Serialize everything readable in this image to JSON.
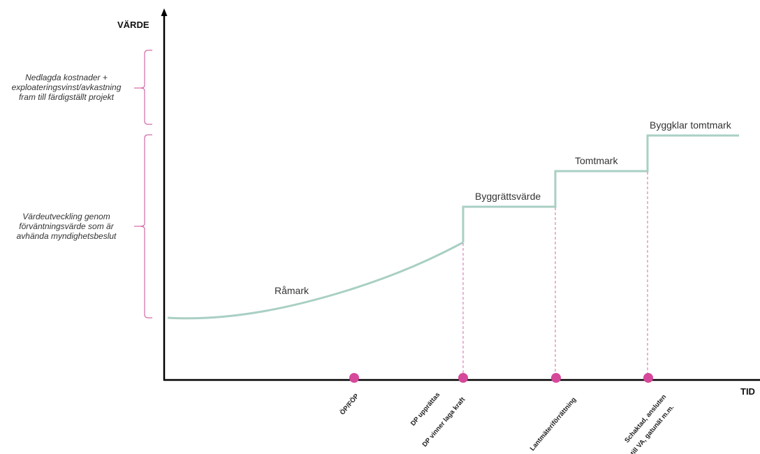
{
  "axes": {
    "y_title": "VÄRDE",
    "x_title": "TID"
  },
  "brackets": [
    {
      "lines": [
        "Nedlagda kostnader +",
        "exploateringsvinst/avkastning",
        "fram till färdigställt projekt"
      ]
    },
    {
      "lines": [
        "Värdeutveckling genom",
        "förväntningsvärde som är",
        "avhända myndighetsbeslut"
      ]
    }
  ],
  "stages": [
    {
      "label": "Råmark"
    },
    {
      "label": "Byggrättsvärde"
    },
    {
      "label": "Tomtmark"
    },
    {
      "label": "Byggklar tomtmark"
    }
  ],
  "milestones": [
    {
      "lines": [
        "ÖP/FÖP"
      ]
    },
    {
      "lines": [
        "DP upprättas",
        "DP vinner laga kraft"
      ]
    },
    {
      "lines": [
        "Lantmäteriförrättning"
      ]
    },
    {
      "lines": [
        "Schaktad, ansluten",
        "till VA, gatunät m.m."
      ]
    }
  ],
  "colors": {
    "curve": "#a9cfc4",
    "marker": "#d6489a",
    "bracket": "#d46aa6",
    "axis": "#000000"
  }
}
